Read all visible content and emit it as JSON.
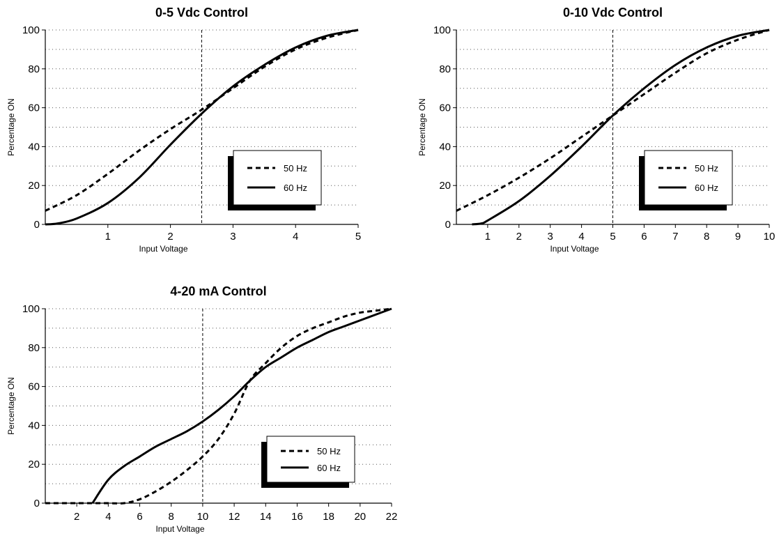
{
  "chart_data": [
    {
      "type": "line",
      "title": "0-5 Vdc Control",
      "xlabel": "Input Voltage",
      "ylabel": "Percentage ON",
      "xlim": [
        0,
        5
      ],
      "ylim": [
        0,
        100
      ],
      "xticks": [
        1,
        2,
        3,
        4,
        5
      ],
      "yticks": [
        0,
        20,
        40,
        60,
        80,
        100
      ],
      "grid": "horizontal dotted",
      "reference_line_x": 2.5,
      "legend_position": "center-right",
      "series": [
        {
          "name": "50 Hz",
          "style": "dashed",
          "x": [
            0,
            0.5,
            1,
            1.5,
            2,
            2.5,
            3,
            3.5,
            4,
            4.5,
            5
          ],
          "y": [
            7,
            15,
            26,
            38,
            49,
            59,
            70,
            81,
            90,
            96,
            100
          ]
        },
        {
          "name": "60 Hz",
          "style": "solid",
          "x": [
            0,
            0.2,
            0.5,
            1,
            1.5,
            2,
            2.5,
            3,
            3.5,
            4,
            4.5,
            5
          ],
          "y": [
            0,
            0.5,
            3,
            11,
            24,
            41,
            57,
            71,
            82,
            91,
            97,
            100
          ]
        }
      ]
    },
    {
      "type": "line",
      "title": "0-10 Vdc Control",
      "xlabel": "Input Voltage",
      "ylabel": "Percentage ON",
      "xlim": [
        0,
        10
      ],
      "ylim": [
        0,
        100
      ],
      "xticks": [
        1,
        2,
        3,
        4,
        5,
        6,
        7,
        8,
        9,
        10
      ],
      "yticks": [
        0,
        20,
        40,
        60,
        80,
        100
      ],
      "grid": "horizontal dotted",
      "reference_line_x": 5,
      "legend_position": "center-right",
      "series": [
        {
          "name": "50 Hz",
          "style": "dashed",
          "x": [
            0,
            1,
            2,
            3,
            4,
            5,
            6,
            7,
            8,
            9,
            10
          ],
          "y": [
            7,
            15,
            24,
            34,
            45,
            56,
            67,
            78,
            88,
            95,
            100
          ]
        },
        {
          "name": "60 Hz",
          "style": "solid",
          "x": [
            0.5,
            0.8,
            1,
            2,
            3,
            4,
            5,
            6,
            7,
            8,
            9,
            10
          ],
          "y": [
            0,
            0.5,
            2,
            12,
            25,
            40,
            56,
            70,
            82,
            91,
            97,
            100
          ]
        }
      ]
    },
    {
      "type": "line",
      "title": "4-20 mA Control",
      "xlabel": "Input Voltage",
      "ylabel": "Percentage ON",
      "xlim": [
        0,
        22
      ],
      "ylim": [
        0,
        100
      ],
      "xticks": [
        2,
        4,
        6,
        8,
        10,
        12,
        14,
        16,
        18,
        20,
        22
      ],
      "yticks": [
        0,
        20,
        40,
        60,
        80,
        100
      ],
      "grid": "horizontal dotted",
      "reference_line_x": 10,
      "legend_position": "lower-right",
      "series": [
        {
          "name": "50 Hz",
          "style": "dashed",
          "x": [
            0,
            2,
            4,
            5,
            6,
            7,
            8,
            9,
            10,
            11,
            12,
            13,
            14,
            15,
            16,
            17,
            18,
            19,
            20,
            21,
            22
          ],
          "y": [
            0,
            0,
            0,
            0,
            2,
            6,
            11,
            17,
            24,
            33,
            46,
            63,
            72,
            80,
            86,
            90,
            93,
            96,
            98,
            99,
            100
          ]
        },
        {
          "name": "60 Hz",
          "style": "solid",
          "x": [
            3,
            4,
            5,
            6,
            7,
            8,
            9,
            10,
            11,
            12,
            13,
            14,
            15,
            16,
            17,
            18,
            19,
            20,
            21,
            22
          ],
          "y": [
            0,
            12,
            19,
            24,
            29,
            33,
            37,
            42,
            48,
            55,
            63,
            70,
            75,
            80,
            84,
            88,
            91,
            94,
            97,
            100
          ]
        }
      ]
    }
  ]
}
